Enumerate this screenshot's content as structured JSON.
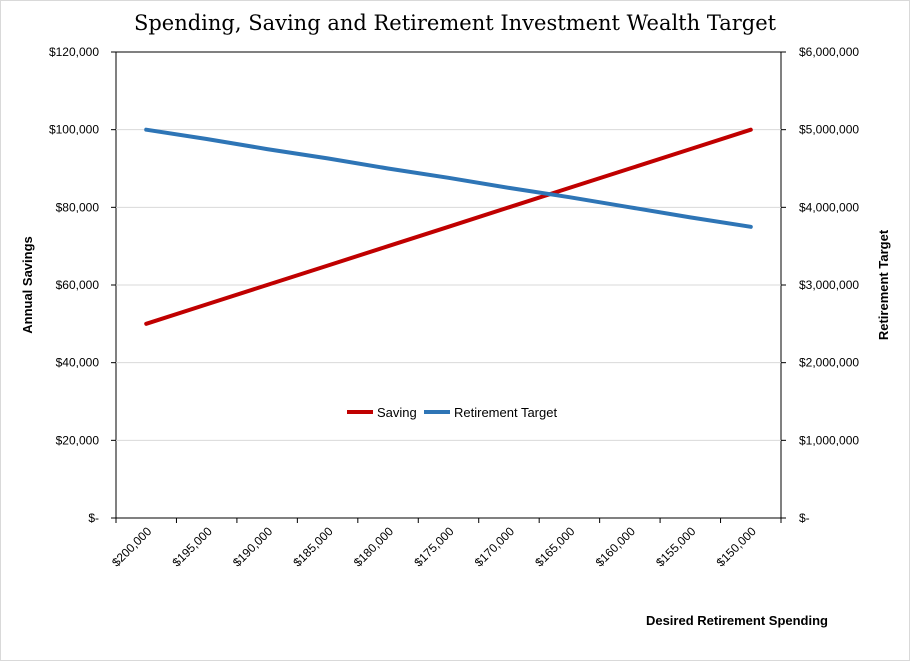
{
  "chart_data": {
    "type": "line",
    "title": "Spending, Saving and Retirement Investment Wealth Target",
    "xlabel": "Desired Retirement Spending",
    "ylabel": "Annual Savings",
    "y2label": "Retirement Target",
    "categories": [
      "$200,000",
      "$195,000",
      "$190,000",
      "$185,000",
      "$180,000",
      "$175,000",
      "$170,000",
      "$165,000",
      "$160,000",
      "$155,000",
      "$150,000"
    ],
    "yticks": [
      "$-",
      "$20,000",
      "$40,000",
      "$60,000",
      "$80,000",
      "$100,000",
      "$120,000"
    ],
    "y2ticks": [
      "$-",
      "$1,000,000",
      "$2,000,000",
      "$3,000,000",
      "$4,000,000",
      "$5,000,000",
      "$6,000,000"
    ],
    "ylim": [
      0,
      120000
    ],
    "y2lim": [
      0,
      6000000
    ],
    "grid": true,
    "legend": "center",
    "series": [
      {
        "name": "Saving",
        "axis": "left",
        "color": "#c00000",
        "values": [
          50000,
          55000,
          60000,
          65000,
          70000,
          75000,
          80000,
          85000,
          90000,
          95000,
          100000
        ]
      },
      {
        "name": "Retirement Target",
        "axis": "right",
        "color": "#2e75b6",
        "values": [
          5000000,
          4880000,
          4750000,
          4630000,
          4500000,
          4380000,
          4250000,
          4130000,
          4000000,
          3870000,
          3750000
        ]
      }
    ]
  }
}
